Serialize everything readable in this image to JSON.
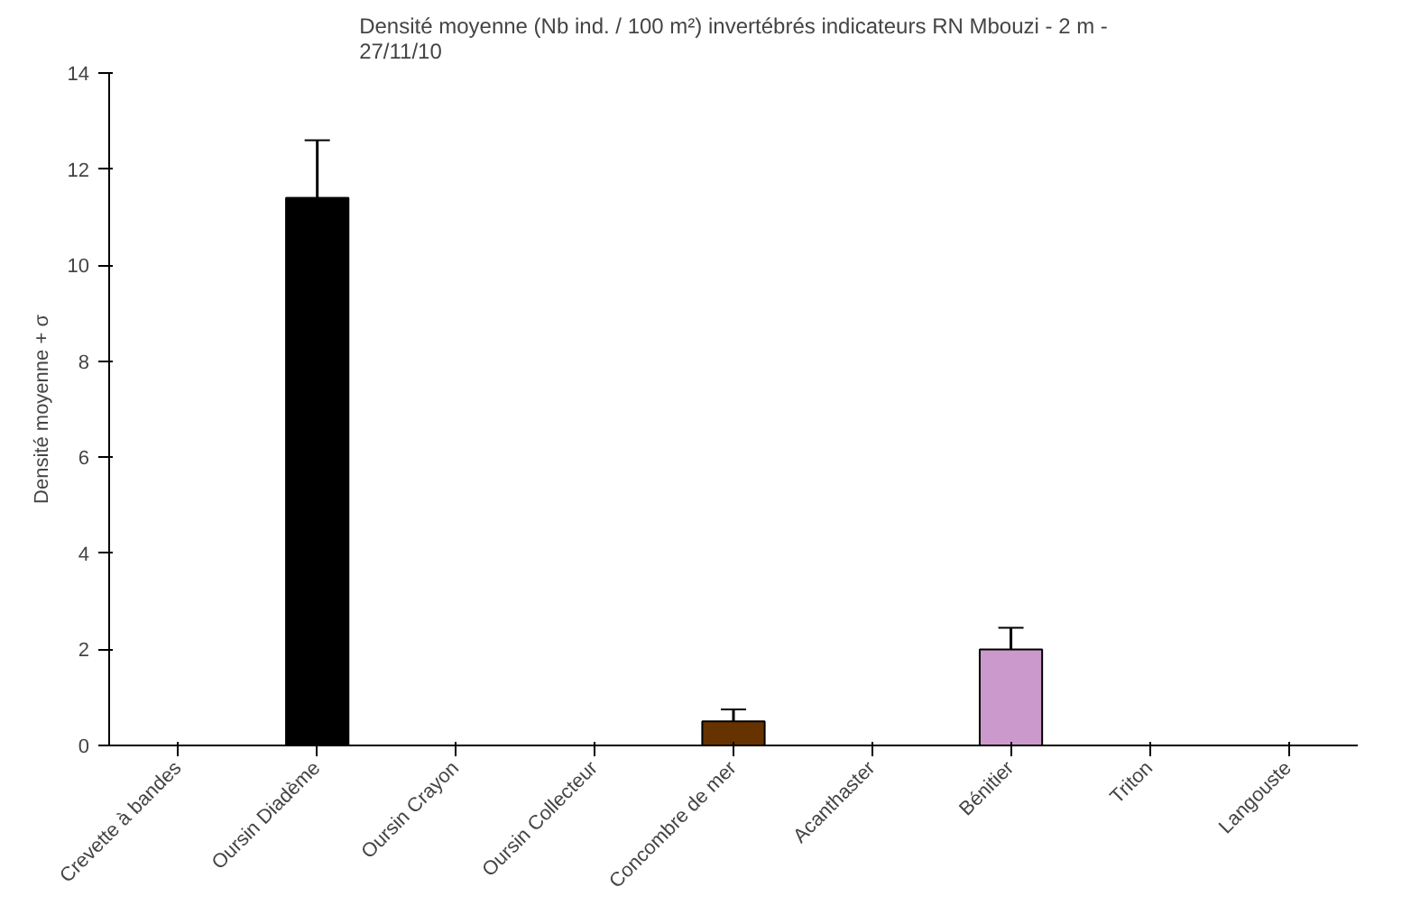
{
  "chart_data": {
    "type": "bar",
    "title": "Densité moyenne (Nb ind. / 100 m²) invertébrés indicateurs RN Mbouzi - 2 m -\n27/11/10",
    "ylabel": "Densité moyenne + σ",
    "categories": [
      "Crevette à bandes",
      "Oursin Diadème",
      "Oursin Crayon",
      "Oursin Collecteur",
      "Concombre de mer",
      "Acanthaster",
      "Bénitier",
      "Triton",
      "Langouste"
    ],
    "values": [
      0,
      11.4,
      0,
      0,
      0.5,
      0,
      2.0,
      0,
      0
    ],
    "errors": [
      null,
      1.2,
      null,
      null,
      0.25,
      null,
      0.45,
      null,
      null
    ],
    "colors": [
      "#000000",
      "#000000",
      "#000000",
      "#000000",
      "#663300",
      "#000000",
      "#cc99cc",
      "#000000",
      "#000000"
    ],
    "ylim": [
      0,
      14
    ],
    "yticks": [
      0,
      2,
      4,
      6,
      8,
      10,
      12,
      14
    ],
    "grid": false
  }
}
